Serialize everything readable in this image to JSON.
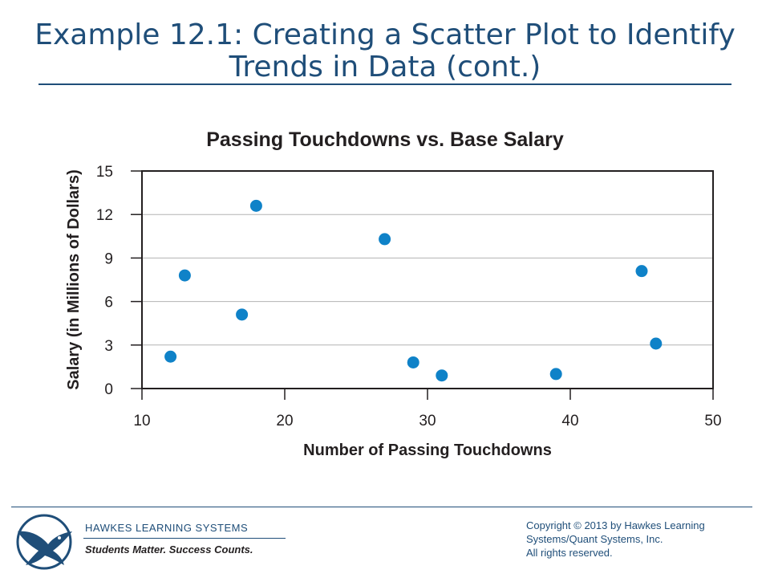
{
  "slide": {
    "title_line1": "Example 12.1: Creating a Scatter Plot to Identify",
    "title_line2": "Trends in Data (cont.)"
  },
  "chart_data": {
    "type": "scatter",
    "title": "Passing Touchdowns vs. Base Salary",
    "xlabel": "Number of Passing Touchdowns",
    "ylabel": "Salary (in Millions of Dollars)",
    "xlim": [
      10,
      50
    ],
    "ylim": [
      0,
      15
    ],
    "xticks": [
      10,
      20,
      30,
      40,
      50
    ],
    "yticks": [
      0,
      3,
      6,
      9,
      12,
      15
    ],
    "grid": "horizontal",
    "point_color": "#0f82c8",
    "points": [
      {
        "x": 12,
        "y": 2.2
      },
      {
        "x": 13,
        "y": 7.8
      },
      {
        "x": 17,
        "y": 5.1
      },
      {
        "x": 18,
        "y": 12.6
      },
      {
        "x": 27,
        "y": 10.3
      },
      {
        "x": 29,
        "y": 1.8
      },
      {
        "x": 31,
        "y": 0.9
      },
      {
        "x": 39,
        "y": 1.0
      },
      {
        "x": 45,
        "y": 8.1
      },
      {
        "x": 46,
        "y": 3.1
      }
    ]
  },
  "footer": {
    "company": "HAWKES LEARNING SYSTEMS",
    "tagline": "Students Matter. Success Counts.",
    "copyright_line1": "Copyright © 2013 by Hawkes Learning",
    "copyright_line2": "Systems/Quant Systems, Inc.",
    "copyright_line3": "All rights reserved.",
    "logo_icon": "eagle-icon",
    "brand_color": "#1f4e79"
  }
}
